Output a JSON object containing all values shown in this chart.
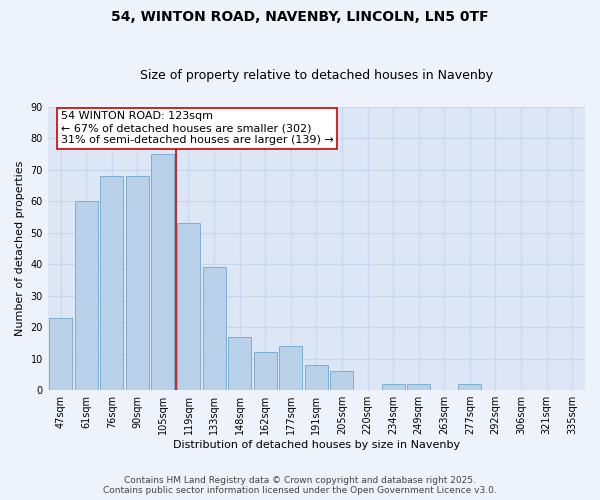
{
  "title": "54, WINTON ROAD, NAVENBY, LINCOLN, LN5 0TF",
  "subtitle": "Size of property relative to detached houses in Navenby",
  "xlabel": "Distribution of detached houses by size in Navenby",
  "ylabel": "Number of detached properties",
  "bar_labels": [
    "47sqm",
    "61sqm",
    "76sqm",
    "90sqm",
    "105sqm",
    "119sqm",
    "133sqm",
    "148sqm",
    "162sqm",
    "177sqm",
    "191sqm",
    "205sqm",
    "220sqm",
    "234sqm",
    "249sqm",
    "263sqm",
    "277sqm",
    "292sqm",
    "306sqm",
    "321sqm",
    "335sqm"
  ],
  "bar_values": [
    23,
    60,
    68,
    68,
    75,
    53,
    39,
    17,
    12,
    14,
    8,
    6,
    0,
    2,
    2,
    0,
    2,
    0,
    0,
    0,
    0
  ],
  "bar_color": "#b8d0e8",
  "bar_edge_color": "#7aafd4",
  "vline_x": 4.5,
  "vline_color": "#cc0000",
  "ylim": [
    0,
    90
  ],
  "yticks": [
    0,
    10,
    20,
    30,
    40,
    50,
    60,
    70,
    80,
    90
  ],
  "annotation_box_text": "54 WINTON ROAD: 123sqm\n← 67% of detached houses are smaller (302)\n31% of semi-detached houses are larger (139) →",
  "background_color": "#eef2fa",
  "plot_bg_color": "#dce6f5",
  "grid_color": "#c8d8ec",
  "footnote1": "Contains HM Land Registry data © Crown copyright and database right 2025.",
  "footnote2": "Contains public sector information licensed under the Open Government Licence v3.0.",
  "title_fontsize": 10,
  "subtitle_fontsize": 9,
  "axis_label_fontsize": 8,
  "tick_fontsize": 7,
  "annotation_fontsize": 8,
  "footnote_fontsize": 6.5
}
